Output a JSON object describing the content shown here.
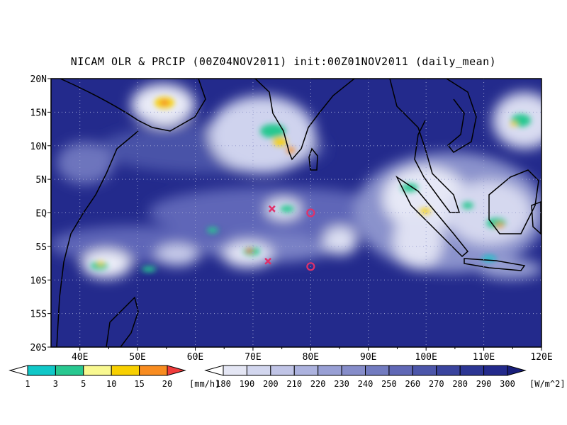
{
  "title": "NICAM OLR & PRCIP (00Z04NOV2011) init:00Z01NOV2011 (daily_mean)",
  "map": {
    "lon_range": [
      35,
      120
    ],
    "lat_range": [
      -20,
      20
    ],
    "lat_ticks": [
      {
        "value": 20,
        "label": "20N"
      },
      {
        "value": 15,
        "label": "15N"
      },
      {
        "value": 10,
        "label": "10N"
      },
      {
        "value": 5,
        "label": "5N"
      },
      {
        "value": 0,
        "label": "EQ"
      },
      {
        "value": -5,
        "label": "5S"
      },
      {
        "value": -10,
        "label": "10S"
      },
      {
        "value": -15,
        "label": "15S"
      },
      {
        "value": -20,
        "label": "20S"
      }
    ],
    "lon_ticks": [
      {
        "value": 40,
        "label": "40E"
      },
      {
        "value": 50,
        "label": "50E"
      },
      {
        "value": 60,
        "label": "60E"
      },
      {
        "value": 70,
        "label": "70E"
      },
      {
        "value": 80,
        "label": "80E"
      },
      {
        "value": 90,
        "label": "90E"
      },
      {
        "value": 100,
        "label": "100E"
      },
      {
        "value": 110,
        "label": "110E"
      },
      {
        "value": 120,
        "label": "120E"
      }
    ],
    "background_color": "#232a8c",
    "grid": "dotted",
    "markers": [
      {
        "type": "x",
        "lon": 73.3,
        "lat": 0.6,
        "color": "#e0306a"
      },
      {
        "type": "x",
        "lon": 72.6,
        "lat": -7.2,
        "color": "#e0306a"
      },
      {
        "type": "circle",
        "lon": 80,
        "lat": 0,
        "color": "#e0306a"
      },
      {
        "type": "circle",
        "lon": 80,
        "lat": -8,
        "color": "#e0306a"
      }
    ]
  },
  "colorbars": {
    "precip": {
      "labels": [
        "1",
        "3",
        "5",
        "10",
        "15",
        "20"
      ],
      "unit": "[mm/h]",
      "colors": [
        "#ffffff",
        "#10c8c8",
        "#28c890",
        "#f8f890",
        "#f8d000",
        "#f88c20",
        "#f03c3c"
      ]
    },
    "olr": {
      "labels": [
        "180",
        "190",
        "200",
        "210",
        "220",
        "230",
        "240",
        "250",
        "260",
        "270",
        "280",
        "290",
        "300"
      ],
      "unit": "[W/m^2]",
      "colors": [
        "#ffffff",
        "#e4e6f4",
        "#d2d6ee",
        "#c0c4e6",
        "#acb2de",
        "#989fd4",
        "#868dca",
        "#727bc0",
        "#6068b6",
        "#4c56aa",
        "#3a449e",
        "#2c3694",
        "#232a8c",
        "#181e7a"
      ]
    }
  }
}
